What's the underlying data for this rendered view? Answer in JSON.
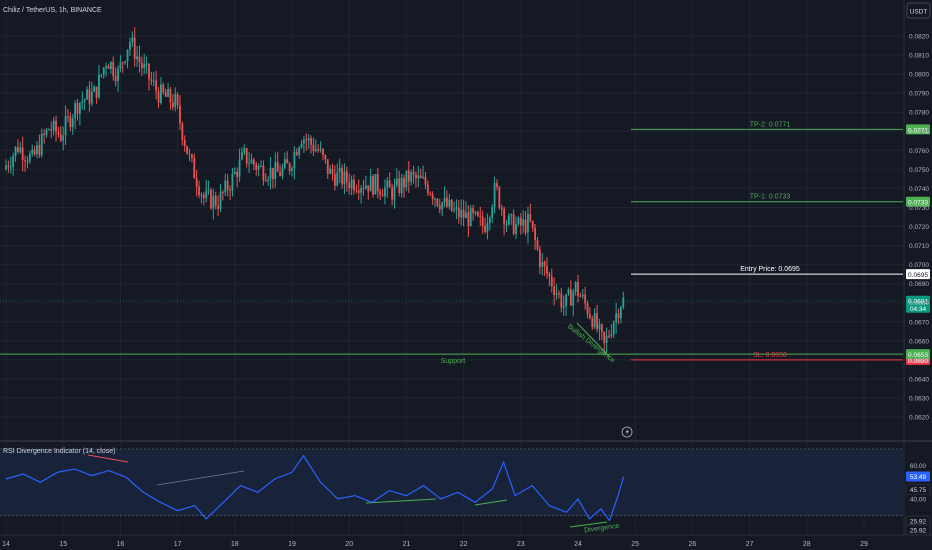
{
  "header": {
    "title": "Chiliz / TetherUS, 1h, BINANCE",
    "currency_button": "USDT"
  },
  "colors": {
    "background": "#151924",
    "grid": "#1f2430",
    "up": "#26a69a",
    "down": "#ef5350",
    "axis_text": "#b2b5be",
    "tp_line": "#4caf50",
    "entry_line": "#ffffff",
    "sl_line": "#f23645",
    "support_line": "#4caf50",
    "rsi_line": "#2962ff",
    "rsi_band": "#1c2a4a",
    "current_price_label": "#089981"
  },
  "chart_data": [
    {
      "type": "candlestick",
      "title": "Chiliz / TetherUS, 1h, BINANCE",
      "x_ticks": [
        "14",
        "15",
        "16",
        "17",
        "18",
        "19",
        "20",
        "21",
        "22",
        "23",
        "24",
        "25",
        "26",
        "27",
        "28",
        "29"
      ],
      "y_ticks": [
        0.082,
        0.081,
        0.08,
        0.079,
        0.078,
        0.077,
        0.076,
        0.075,
        0.074,
        0.073,
        0.072,
        0.071,
        0.07,
        0.069,
        0.068,
        0.067,
        0.066,
        0.065,
        0.064,
        0.063,
        0.062
      ],
      "y_tick_labels": [
        "0.0820",
        "0.0810",
        "0.0800",
        "0.0790",
        "0.0780",
        "0.0770",
        "0.0760",
        "0.0750",
        "0.0740",
        "0.0730",
        "0.0720",
        "0.0710",
        "0.0700",
        "0.0690",
        "0.0680",
        "0.0670",
        "0.0660",
        "0.0650",
        "0.0640",
        "0.0630",
        "0.0620"
      ],
      "ylim": [
        0.0615,
        0.0831
      ],
      "xlim_days": [
        14,
        30.1
      ],
      "price_path": [
        {
          "day": 14.0,
          "price": 0.075
        },
        {
          "day": 14.25,
          "price": 0.0762
        },
        {
          "day": 14.5,
          "price": 0.0755
        },
        {
          "day": 14.8,
          "price": 0.0772
        },
        {
          "day": 15.0,
          "price": 0.0768
        },
        {
          "day": 15.3,
          "price": 0.0785
        },
        {
          "day": 15.6,
          "price": 0.079
        },
        {
          "day": 15.8,
          "price": 0.0808
        },
        {
          "day": 16.0,
          "price": 0.08
        },
        {
          "day": 16.2,
          "price": 0.0818
        },
        {
          "day": 16.4,
          "price": 0.0805
        },
        {
          "day": 16.7,
          "price": 0.079
        },
        {
          "day": 17.0,
          "price": 0.0785
        },
        {
          "day": 17.25,
          "price": 0.0755
        },
        {
          "day": 17.5,
          "price": 0.0735
        },
        {
          "day": 17.75,
          "price": 0.0733
        },
        {
          "day": 18.0,
          "price": 0.0745
        },
        {
          "day": 18.2,
          "price": 0.0757
        },
        {
          "day": 18.5,
          "price": 0.075
        },
        {
          "day": 18.8,
          "price": 0.0748
        },
        {
          "day": 19.0,
          "price": 0.0752
        },
        {
          "day": 19.2,
          "price": 0.0768
        },
        {
          "day": 19.5,
          "price": 0.076
        },
        {
          "day": 19.7,
          "price": 0.0748
        },
        {
          "day": 20.0,
          "price": 0.0744
        },
        {
          "day": 20.5,
          "price": 0.0742
        },
        {
          "day": 20.8,
          "price": 0.0738
        },
        {
          "day": 21.1,
          "price": 0.0746
        },
        {
          "day": 21.4,
          "price": 0.0742
        },
        {
          "day": 21.6,
          "price": 0.0734
        },
        {
          "day": 21.9,
          "price": 0.0727
        },
        {
          "day": 22.2,
          "price": 0.0724
        },
        {
          "day": 22.4,
          "price": 0.072
        },
        {
          "day": 22.6,
          "price": 0.074
        },
        {
          "day": 22.8,
          "price": 0.0722
        },
        {
          "day": 23.0,
          "price": 0.072
        },
        {
          "day": 23.2,
          "price": 0.0722
        },
        {
          "day": 23.4,
          "price": 0.07
        },
        {
          "day": 23.6,
          "price": 0.069
        },
        {
          "day": 23.8,
          "price": 0.0678
        },
        {
          "day": 24.0,
          "price": 0.0688
        },
        {
          "day": 24.15,
          "price": 0.068
        },
        {
          "day": 24.3,
          "price": 0.0672
        },
        {
          "day": 24.5,
          "price": 0.0657
        },
        {
          "day": 24.65,
          "price": 0.067
        },
        {
          "day": 24.8,
          "price": 0.0681
        }
      ],
      "levels": [
        {
          "name": "TP-2: 0.0771",
          "price": 0.0771,
          "tag": "0.0771",
          "color": "#4caf50"
        },
        {
          "name": "TP-1: 0.0733",
          "price": 0.0733,
          "tag": "0.0733",
          "color": "#4caf50"
        },
        {
          "name": "Entry Price: 0.0695",
          "price": 0.0695,
          "tag": "0.0695",
          "color": "#ffffff"
        },
        {
          "name": "SL: 0.0650",
          "price": 0.065,
          "tag": "0.0650",
          "color": "#f23645"
        }
      ],
      "support": {
        "label": "Support",
        "price": 0.0653,
        "tag": "0.0653"
      },
      "current_price": {
        "price": "0.0681",
        "countdown": "04:34"
      },
      "annotations": [
        {
          "text": "Bullish Divergence",
          "color": "#4caf50"
        }
      ]
    },
    {
      "type": "line",
      "title": "RSI Divergence Indicator (14, close)",
      "ylim": [
        20,
        75
      ],
      "y_ticks": [
        60.0,
        40.0
      ],
      "y_tick_labels": [
        "60.00",
        "40.00"
      ],
      "band": [
        30,
        70
      ],
      "tags": [
        {
          "text": "53.49",
          "value": 53.49,
          "style": "rsi"
        },
        {
          "text": "45.75",
          "value": 45.75,
          "style": "plain"
        },
        {
          "text": "25.92",
          "value": 25.92,
          "style": "plain"
        },
        {
          "text": "25.92",
          "value": 25.92,
          "style": "plain"
        }
      ],
      "series": [
        {
          "points": [
            {
              "day": 14.0,
              "value": 52
            },
            {
              "day": 14.3,
              "value": 55
            },
            {
              "day": 14.6,
              "value": 50
            },
            {
              "day": 14.9,
              "value": 56
            },
            {
              "day": 15.2,
              "value": 58
            },
            {
              "day": 15.5,
              "value": 54
            },
            {
              "day": 15.8,
              "value": 57
            },
            {
              "day": 16.1,
              "value": 53
            },
            {
              "day": 16.4,
              "value": 44
            },
            {
              "day": 16.7,
              "value": 38
            },
            {
              "day": 17.0,
              "value": 33
            },
            {
              "day": 17.3,
              "value": 36
            },
            {
              "day": 17.5,
              "value": 28
            },
            {
              "day": 17.8,
              "value": 38
            },
            {
              "day": 18.1,
              "value": 48
            },
            {
              "day": 18.4,
              "value": 44
            },
            {
              "day": 18.7,
              "value": 52
            },
            {
              "day": 19.0,
              "value": 56
            },
            {
              "day": 19.2,
              "value": 66
            },
            {
              "day": 19.5,
              "value": 50
            },
            {
              "day": 19.8,
              "value": 40
            },
            {
              "day": 20.1,
              "value": 42
            },
            {
              "day": 20.4,
              "value": 38
            },
            {
              "day": 20.7,
              "value": 45
            },
            {
              "day": 21.0,
              "value": 42
            },
            {
              "day": 21.3,
              "value": 48
            },
            {
              "day": 21.6,
              "value": 40
            },
            {
              "day": 21.9,
              "value": 44
            },
            {
              "day": 22.2,
              "value": 38
            },
            {
              "day": 22.5,
              "value": 46
            },
            {
              "day": 22.7,
              "value": 62
            },
            {
              "day": 22.9,
              "value": 42
            },
            {
              "day": 23.2,
              "value": 48
            },
            {
              "day": 23.5,
              "value": 36
            },
            {
              "day": 23.8,
              "value": 32
            },
            {
              "day": 24.0,
              "value": 40
            },
            {
              "day": 24.2,
              "value": 28
            },
            {
              "day": 24.4,
              "value": 34
            },
            {
              "day": 24.55,
              "value": 27
            },
            {
              "day": 24.7,
              "value": 42
            },
            {
              "day": 24.8,
              "value": 53.49
            }
          ]
        }
      ],
      "annotations": [
        {
          "text": "Divergence",
          "color": "#4caf50"
        }
      ]
    }
  ]
}
